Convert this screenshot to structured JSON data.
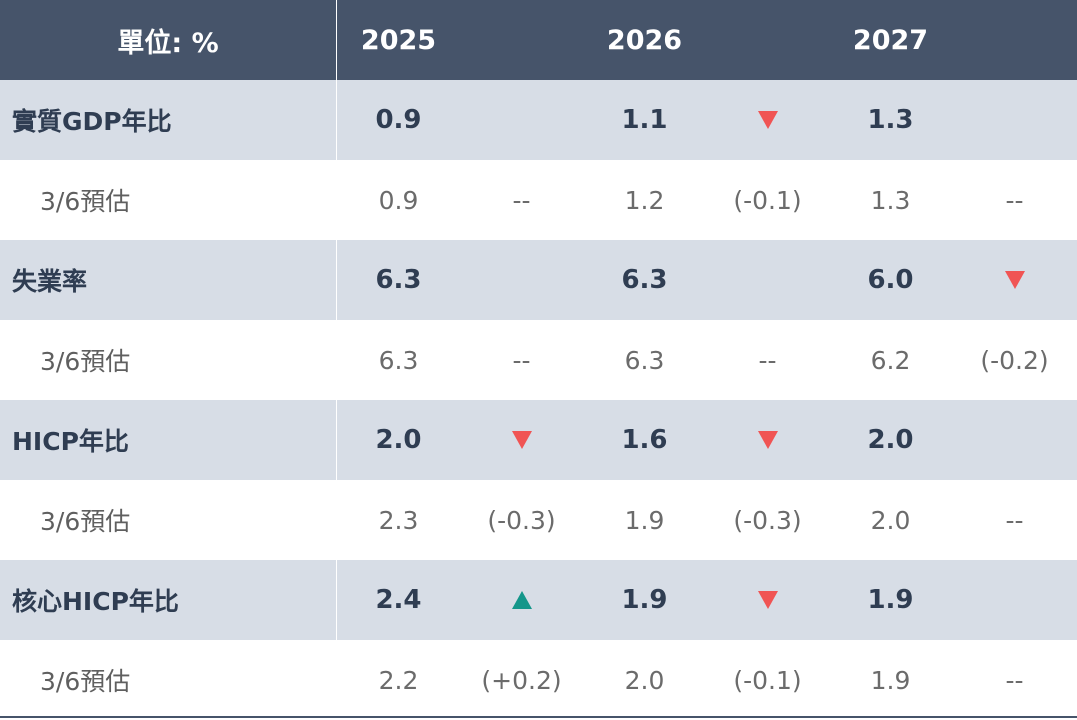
{
  "header": {
    "unit_label": "單位: %",
    "years": [
      "2025",
      "2026",
      "2027"
    ]
  },
  "colors": {
    "header_bg": "#46546a",
    "main_row_bg": "#d7dde6",
    "sub_row_bg": "#ffffff",
    "down_arrow": "#f05454",
    "up_arrow": "#14968a"
  },
  "rows": [
    {
      "label": "實質GDP年比",
      "values": [
        "0.9",
        "1.1",
        "1.3"
      ],
      "changes": [
        "",
        "down",
        ""
      ],
      "sub": {
        "label": "3/6預估",
        "values": [
          "0.9",
          "1.2",
          "1.3"
        ],
        "diffs": [
          "--",
          "(-0.1)",
          "--"
        ]
      }
    },
    {
      "label": "失業率",
      "values": [
        "6.3",
        "6.3",
        "6.0"
      ],
      "changes": [
        "",
        "",
        "down"
      ],
      "sub": {
        "label": "3/6預估",
        "values": [
          "6.3",
          "6.3",
          "6.2"
        ],
        "diffs": [
          "--",
          "--",
          "(-0.2)"
        ]
      }
    },
    {
      "label": "HICP年比",
      "values": [
        "2.0",
        "1.6",
        "2.0"
      ],
      "changes": [
        "down",
        "down",
        ""
      ],
      "sub": {
        "label": "3/6預估",
        "values": [
          "2.3",
          "1.9",
          "2.0"
        ],
        "diffs": [
          "(-0.3)",
          "(-0.3)",
          "--"
        ]
      }
    },
    {
      "label": "核心HICP年比",
      "values": [
        "2.4",
        "1.9",
        "1.9"
      ],
      "changes": [
        "up",
        "down",
        ""
      ],
      "sub": {
        "label": "3/6預估",
        "values": [
          "2.2",
          "2.0",
          "1.9"
        ],
        "diffs": [
          "(+0.2)",
          "(-0.1)",
          "--"
        ]
      }
    }
  ],
  "chart_data": {
    "type": "table",
    "columns": [
      "單位: %",
      "2025",
      "",
      "2026",
      "",
      "2027",
      ""
    ],
    "rows": [
      [
        "實質GDP年比",
        "0.9",
        "",
        "1.1",
        "down",
        "1.3",
        ""
      ],
      [
        "3/6預估",
        "0.9",
        "--",
        "1.2",
        "(-0.1)",
        "1.3",
        "--"
      ],
      [
        "失業率",
        "6.3",
        "",
        "6.3",
        "",
        "6.0",
        "down"
      ],
      [
        "3/6預估",
        "6.3",
        "--",
        "6.3",
        "--",
        "6.2",
        "(-0.2)"
      ],
      [
        "HICP年比",
        "2.0",
        "down",
        "1.6",
        "down",
        "2.0",
        ""
      ],
      [
        "3/6預估",
        "2.3",
        "(-0.3)",
        "1.9",
        "(-0.3)",
        "2.0",
        "--"
      ],
      [
        "核心HICP年比",
        "2.4",
        "up",
        "1.9",
        "down",
        "1.9",
        ""
      ],
      [
        "3/6預估",
        "2.2",
        "(+0.2)",
        "2.0",
        "(-0.1)",
        "1.9",
        "--"
      ]
    ]
  }
}
